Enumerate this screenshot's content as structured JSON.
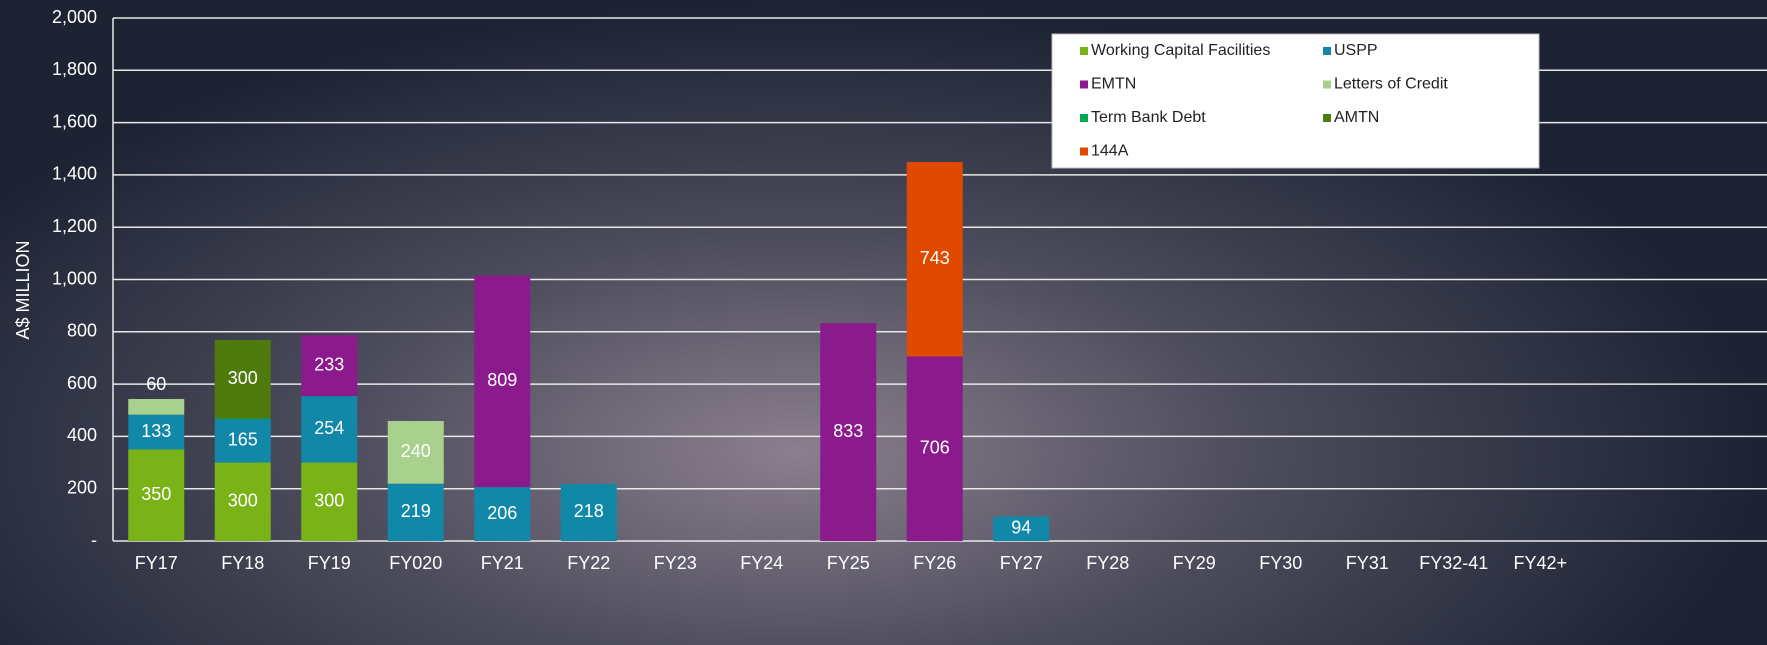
{
  "chart_data": {
    "type": "bar",
    "stacked": true,
    "y_label": "A$ MILLION",
    "categories": [
      "FY17",
      "FY18",
      "FY19",
      "FY020",
      "FY21",
      "FY22",
      "FY23",
      "FY24",
      "FY25",
      "FY26",
      "FY27",
      "FY28",
      "FY29",
      "FY30",
      "FY31",
      "FY32-41",
      "FY42+"
    ],
    "series": [
      {
        "name": "Working Capital Facilities",
        "color": "#7ab317",
        "values": [
          350,
          300,
          300,
          null,
          null,
          null,
          null,
          null,
          null,
          null,
          null,
          null,
          null,
          null,
          null,
          null,
          null
        ]
      },
      {
        "name": "USPP",
        "color": "#1188a8",
        "values": [
          133,
          165,
          254,
          219,
          206,
          218,
          null,
          null,
          null,
          null,
          94,
          null,
          null,
          null,
          null,
          null,
          null
        ]
      },
      {
        "name": "EMTN",
        "color": "#8b1a8d",
        "values": [
          null,
          null,
          233,
          null,
          809,
          null,
          null,
          null,
          833,
          706,
          null,
          null,
          null,
          null,
          null,
          null,
          null
        ]
      },
      {
        "name": "Letters of Credit",
        "color": "#a9d18e",
        "values": [
          60,
          null,
          null,
          240,
          null,
          null,
          null,
          null,
          null,
          null,
          null,
          null,
          null,
          null,
          null,
          null,
          null
        ]
      },
      {
        "name": "Term Bank Debt",
        "color": "#00a651",
        "values": [
          null,
          4,
          null,
          null,
          null,
          null,
          null,
          null,
          null,
          null,
          null,
          null,
          null,
          null,
          null,
          null,
          null
        ]
      },
      {
        "name": "AMTN",
        "color": "#4f7a0e",
        "values": [
          null,
          300,
          null,
          null,
          null,
          null,
          null,
          null,
          null,
          null,
          null,
          null,
          null,
          null,
          null,
          null,
          null
        ]
      },
      {
        "name": "144A",
        "color": "#e04a00",
        "values": [
          null,
          null,
          null,
          null,
          null,
          null,
          null,
          null,
          null,
          743,
          null,
          null,
          null,
          null,
          null,
          null,
          null
        ]
      }
    ],
    "ylim": [
      0,
      2000
    ],
    "yticks": [
      {
        "value": 0,
        "label": "-"
      },
      200,
      400,
      600,
      800,
      {
        "value": 1000,
        "label": "1,000"
      },
      {
        "value": 1200,
        "label": "1,200"
      },
      {
        "value": 1400,
        "label": "1,400"
      },
      {
        "value": 1600,
        "label": "1,600"
      },
      {
        "value": 1800,
        "label": "1,800"
      },
      {
        "value": 2000,
        "label": "2,000"
      }
    ],
    "grid": true,
    "legend": "upper right"
  }
}
